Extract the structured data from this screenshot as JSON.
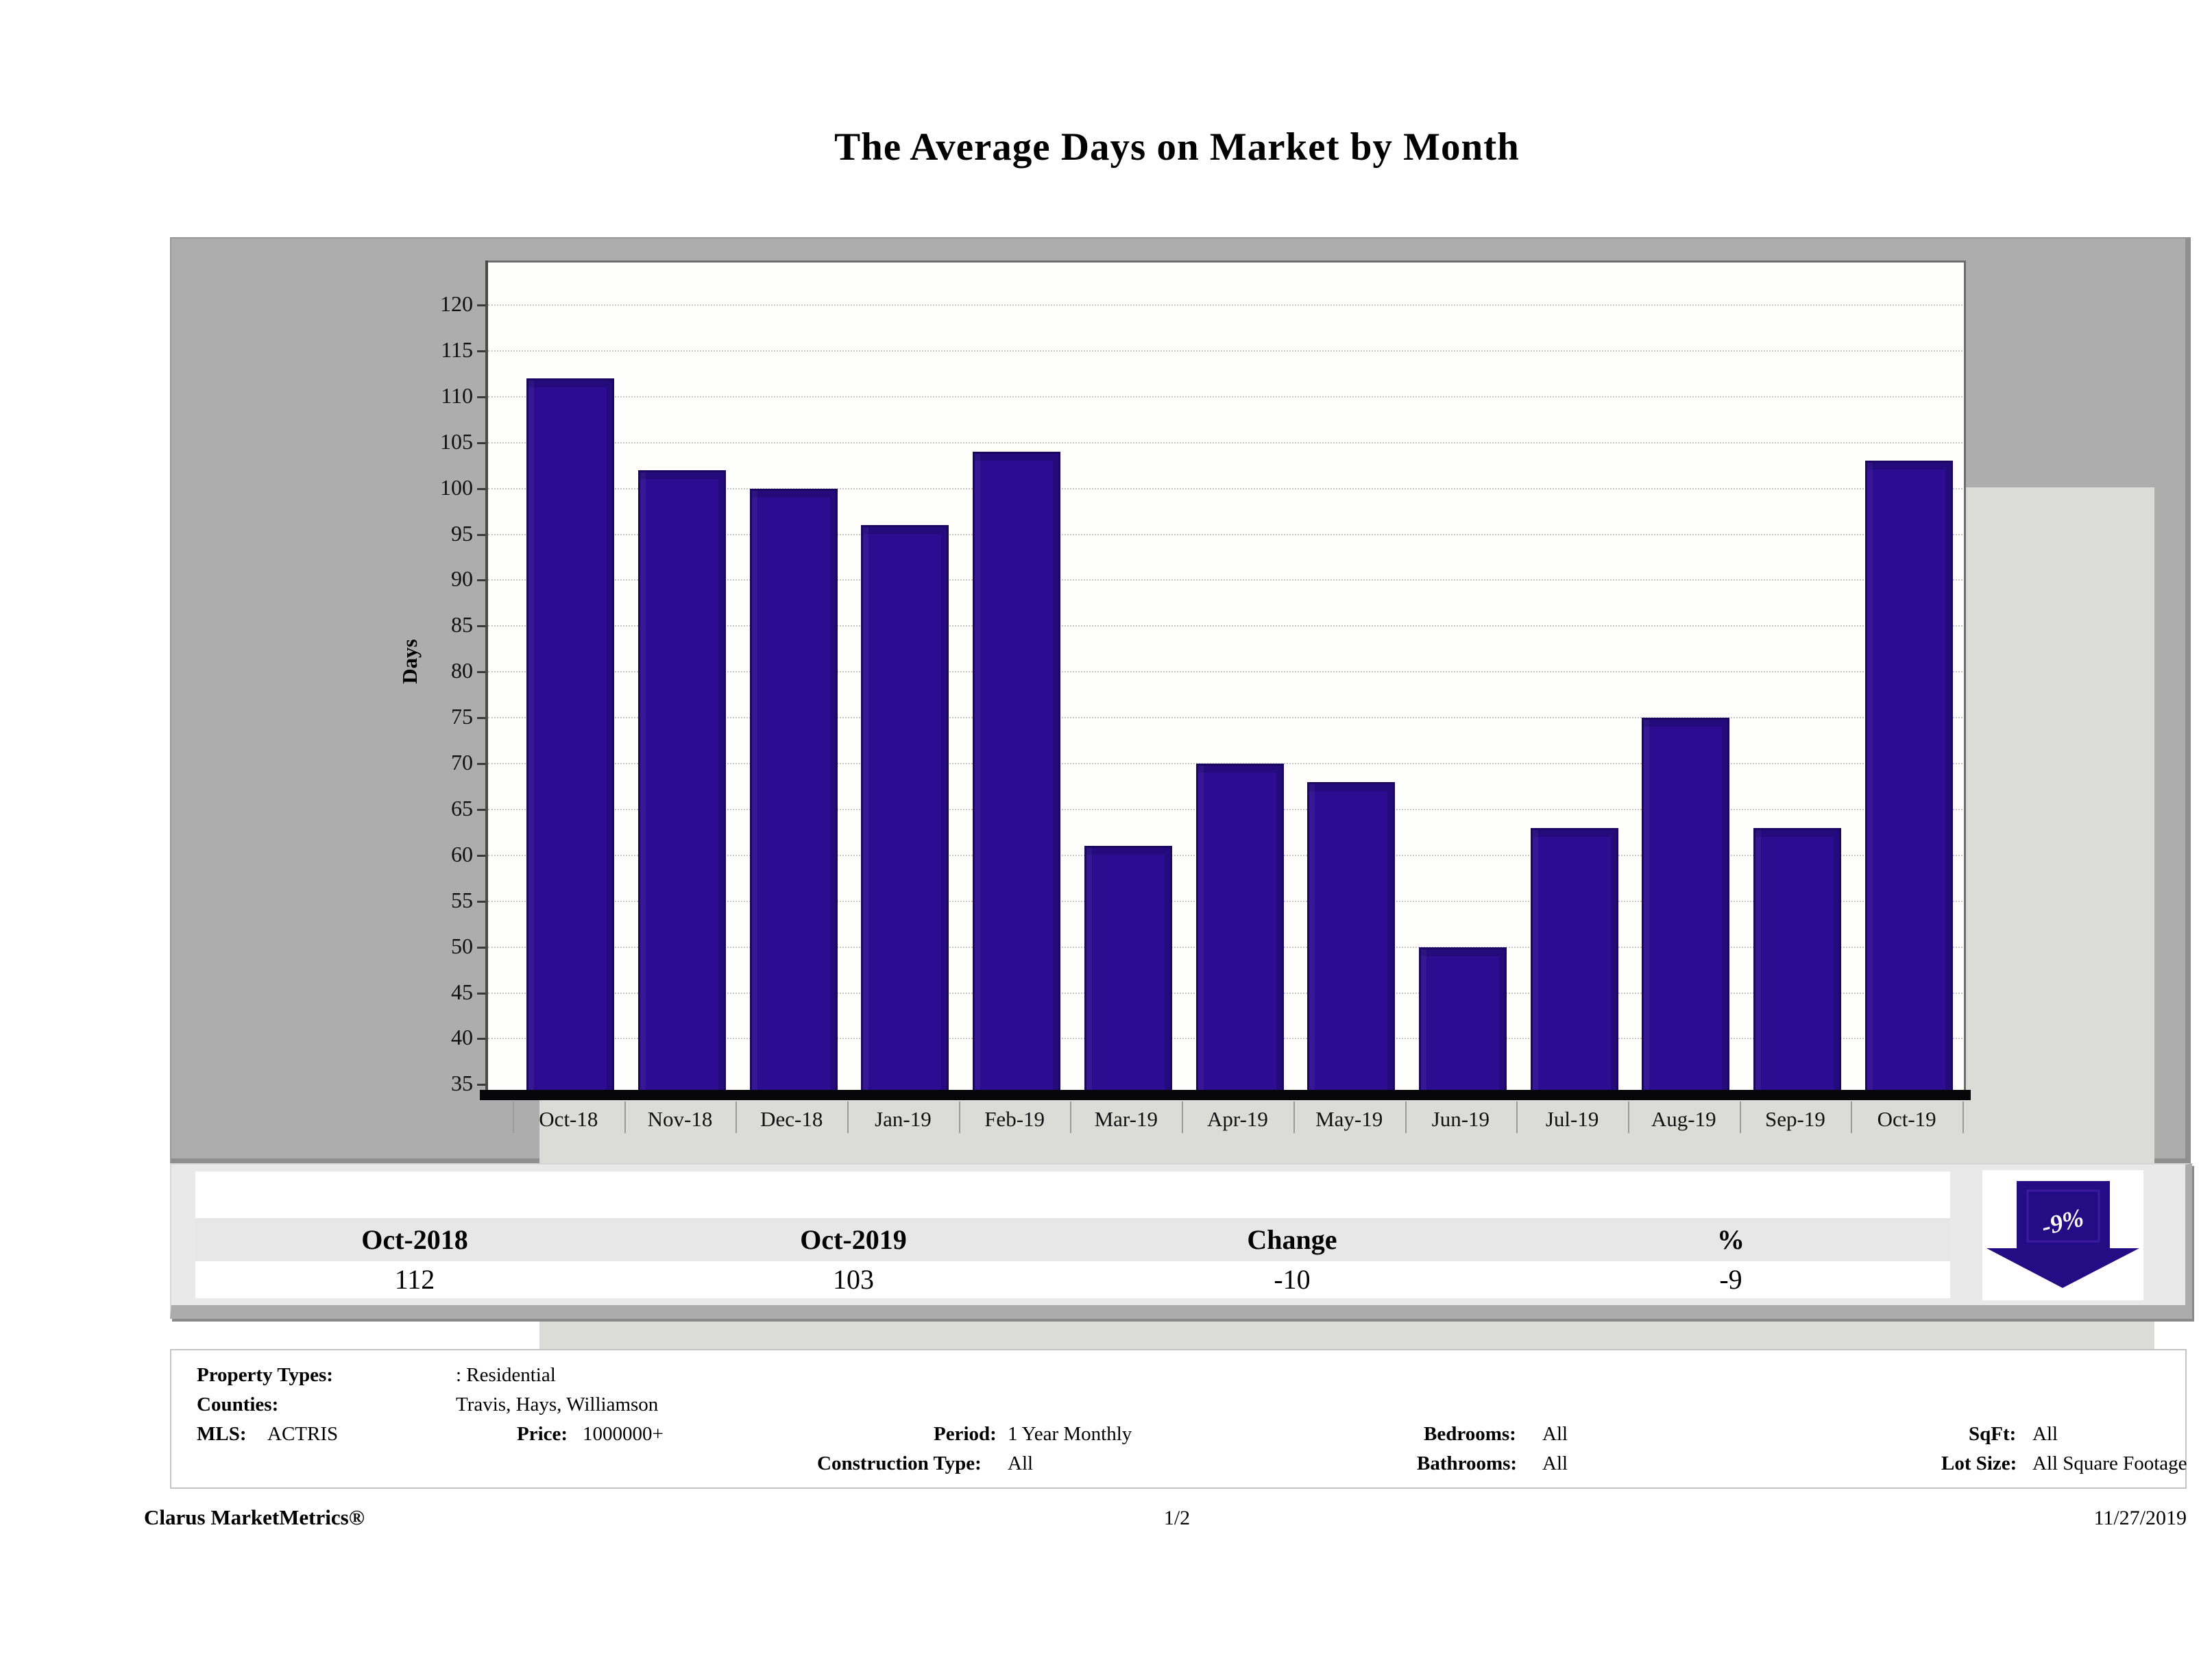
{
  "chart_data": {
    "type": "bar",
    "title": "The Average Days on Market by Month",
    "ylabel": "Days",
    "xlabel": "",
    "categories": [
      "Oct-18",
      "Nov-18",
      "Dec-18",
      "Jan-19",
      "Feb-19",
      "Mar-19",
      "Apr-19",
      "May-19",
      "Jun-19",
      "Jul-19",
      "Aug-19",
      "Sep-19",
      "Oct-19"
    ],
    "values": [
      112,
      102,
      100,
      96,
      104,
      61,
      70,
      68,
      50,
      63,
      75,
      63,
      103
    ],
    "ylim": [
      35,
      120
    ],
    "ytick_step": 5,
    "grid": "horizontal-dotted",
    "legend": "none",
    "bar_color": "#2C0C90"
  },
  "summary": {
    "columns": [
      "Oct-2018",
      "Oct-2019",
      "Change",
      "%"
    ],
    "values": [
      "112",
      "103",
      "-10",
      "-9"
    ],
    "arrow_label": "-9%",
    "arrow_color": "#240C85",
    "arrow_direction": "down"
  },
  "filters": {
    "property_types": {
      "label": "Property Types:",
      "value": ": Residential"
    },
    "counties": {
      "label": "Counties:",
      "value": "Travis, Hays, Williamson"
    },
    "mls": {
      "label": "MLS:",
      "value": "ACTRIS"
    },
    "price": {
      "label": "Price:",
      "value": "1000000+"
    },
    "period": {
      "label": "Period:",
      "value": "1 Year Monthly"
    },
    "construction_type": {
      "label": "Construction Type:",
      "value": "All"
    },
    "bedrooms": {
      "label": "Bedrooms:",
      "value": "All"
    },
    "bathrooms": {
      "label": "Bathrooms:",
      "value": "All"
    },
    "sqft": {
      "label": "SqFt:",
      "value": "All"
    },
    "lot_size": {
      "label": "Lot Size:",
      "value": "All Square Footage"
    }
  },
  "page_footer": {
    "brand": "Clarus MarketMetrics®",
    "page_number": "1/2",
    "date": "11/27/2019"
  }
}
